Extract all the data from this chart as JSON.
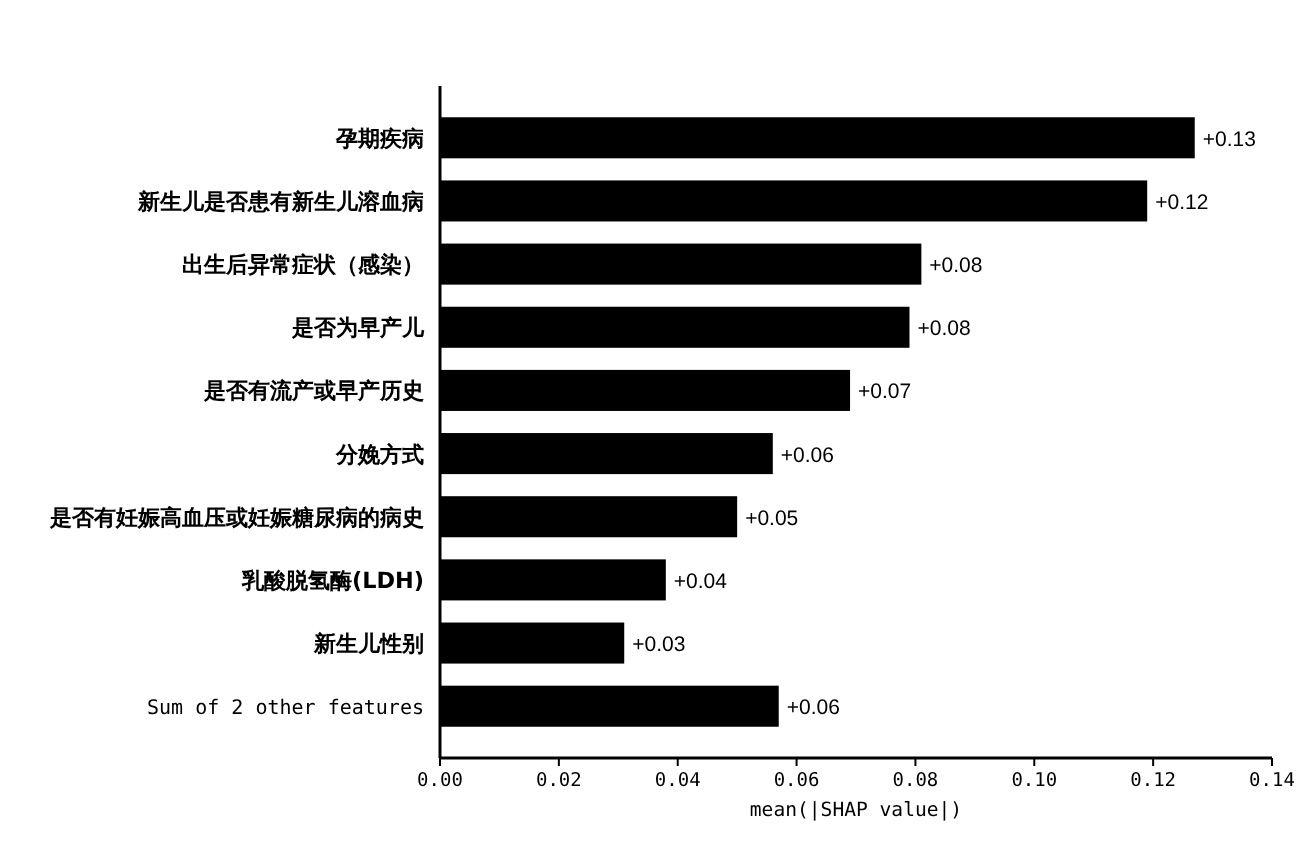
{
  "chart_data": {
    "type": "bar",
    "orientation": "horizontal",
    "categories": [
      "孕期疾病",
      "新生儿是否患有新生儿溶血病",
      "出生后异常症状（感染）",
      "是否为早产儿",
      "是否有流产或早产历史",
      "分娩方式",
      "是否有妊娠高血压或妊娠糖尿病的病史",
      "乳酸脱氢酶(LDH)",
      "新生儿性别",
      "Sum of 2 other features"
    ],
    "values": [
      0.127,
      0.119,
      0.081,
      0.079,
      0.069,
      0.056,
      0.05,
      0.038,
      0.031,
      0.057
    ],
    "value_labels": [
      "+0.13",
      "+0.12",
      "+0.08",
      "+0.08",
      "+0.07",
      "+0.06",
      "+0.05",
      "+0.04",
      "+0.03",
      "+0.06"
    ],
    "color": "#000000",
    "xlabel": "mean(|SHAP value|)",
    "xlim": [
      0,
      0.14
    ],
    "xticks": [
      {
        "value": 0,
        "label": "0.00"
      },
      {
        "value": 0.02,
        "label": "0.02"
      },
      {
        "value": 0.04,
        "label": "0.04"
      },
      {
        "value": 0.06,
        "label": "0.06"
      },
      {
        "value": 0.08,
        "label": "0.08"
      },
      {
        "value": 0.1,
        "label": "0.10"
      },
      {
        "value": 0.12,
        "label": "0.12"
      },
      {
        "value": 0.14,
        "label": "0.14"
      }
    ]
  }
}
